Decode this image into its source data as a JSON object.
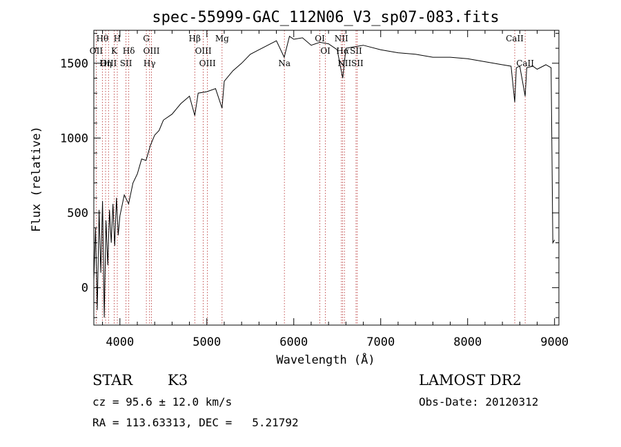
{
  "chart_data": {
    "type": "line",
    "title": "spec-55999-GAC_112N06_V3_sp07-083.fits",
    "xlabel": "Wavelength (Å)",
    "ylabel": "Flux (relative)",
    "xlim": [
      3700,
      9050
    ],
    "ylim": [
      -250,
      1720
    ],
    "x_ticks": [
      4000,
      5000,
      6000,
      7000,
      8000,
      9000
    ],
    "x_tick_labels": [
      "4000",
      "5000",
      "6000",
      "7000",
      "8000",
      "9000"
    ],
    "y_ticks": [
      0,
      500,
      1000,
      1500
    ],
    "y_tick_labels": [
      "0",
      "500",
      "1000",
      "1500"
    ],
    "grid": false,
    "series": [
      {
        "x": [
          3700,
          3720,
          3740,
          3760,
          3780,
          3800,
          3820,
          3840,
          3860,
          3880,
          3900,
          3920,
          3940,
          3960,
          3980,
          4000,
          4050,
          4100,
          4150,
          4200,
          4250,
          4300,
          4350,
          4400,
          4450,
          4500,
          4600,
          4700,
          4800,
          4861,
          4900,
          5000,
          5100,
          5175,
          5200,
          5300,
          5400,
          5500,
          5600,
          5700,
          5800,
          5890,
          5950,
          6000,
          6100,
          6200,
          6300,
          6400,
          6500,
          6563,
          6600,
          6700,
          6800,
          7000,
          7200,
          7400,
          7600,
          7800,
          8000,
          8200,
          8400,
          8500,
          8542,
          8560,
          8600,
          8662,
          8680,
          8750,
          8800,
          8900,
          8960,
          8980,
          9000
        ],
        "y": [
          50,
          400,
          -150,
          520,
          100,
          580,
          -200,
          450,
          150,
          520,
          300,
          560,
          280,
          600,
          350,
          480,
          620,
          560,
          700,
          760,
          860,
          850,
          950,
          1020,
          1050,
          1120,
          1160,
          1230,
          1280,
          1150,
          1300,
          1310,
          1330,
          1200,
          1380,
          1450,
          1500,
          1560,
          1590,
          1620,
          1650,
          1540,
          1680,
          1660,
          1670,
          1620,
          1640,
          1630,
          1590,
          1400,
          1600,
          1610,
          1620,
          1590,
          1570,
          1560,
          1540,
          1540,
          1530,
          1510,
          1490,
          1480,
          1240,
          1470,
          1480,
          1280,
          1470,
          1480,
          1460,
          1490,
          1470,
          300,
          320
        ]
      }
    ],
    "lines": [
      {
        "wave": 3798,
        "label": "Hθ",
        "row": 0
      },
      {
        "wave": 3727,
        "label": "OII",
        "row": 1
      },
      {
        "wave": 3835,
        "label": "Hη",
        "row": 2
      },
      {
        "wave": 3869,
        "label": "OIII",
        "row": 2
      },
      {
        "wave": 3970,
        "label": "H",
        "row": 0
      },
      {
        "wave": 3934,
        "label": "K",
        "row": 1
      },
      {
        "wave": 4102,
        "label": "Hδ",
        "row": 1
      },
      {
        "wave": 4070,
        "label": "SII",
        "row": 2
      },
      {
        "wave": 4304,
        "label": "G",
        "row": 0
      },
      {
        "wave": 4363,
        "label": "OIII",
        "row": 1
      },
      {
        "wave": 4341,
        "label": "Hγ",
        "row": 2
      },
      {
        "wave": 4861,
        "label": "Hβ",
        "row": 0
      },
      {
        "wave": 4959,
        "label": "OIII",
        "row": 1
      },
      {
        "wave": 5007,
        "label": "OIII",
        "row": 2
      },
      {
        "wave": 5175,
        "label": "Mg",
        "row": 0
      },
      {
        "wave": 5892,
        "label": "Na",
        "row": 2
      },
      {
        "wave": 6300,
        "label": "OI",
        "row": 0
      },
      {
        "wave": 6364,
        "label": "OI",
        "row": 1
      },
      {
        "wave": 6548,
        "label": "NII",
        "row": 0
      },
      {
        "wave": 6563,
        "label": "Hα",
        "row": 1
      },
      {
        "wave": 6583,
        "label": "NII",
        "row": 2
      },
      {
        "wave": 6716,
        "label": "SII",
        "row": 1
      },
      {
        "wave": 6731,
        "label": "SII",
        "row": 2
      },
      {
        "wave": 8542,
        "label": "CaII",
        "row": 0
      },
      {
        "wave": 8662,
        "label": "CaII",
        "row": 2
      }
    ]
  },
  "info": {
    "object_class": "STAR",
    "subclass": "K3",
    "survey": "LAMOST DR2",
    "cz": "cz = 95.6 ± 12.0 km/s",
    "obs_date": "Obs-Date: 20120312",
    "coords": "RA = 113.63313, DEC =   5.21792"
  },
  "colors": {
    "spectrum": "#000000",
    "line_marker": "#b22222",
    "axes": "#000000"
  }
}
